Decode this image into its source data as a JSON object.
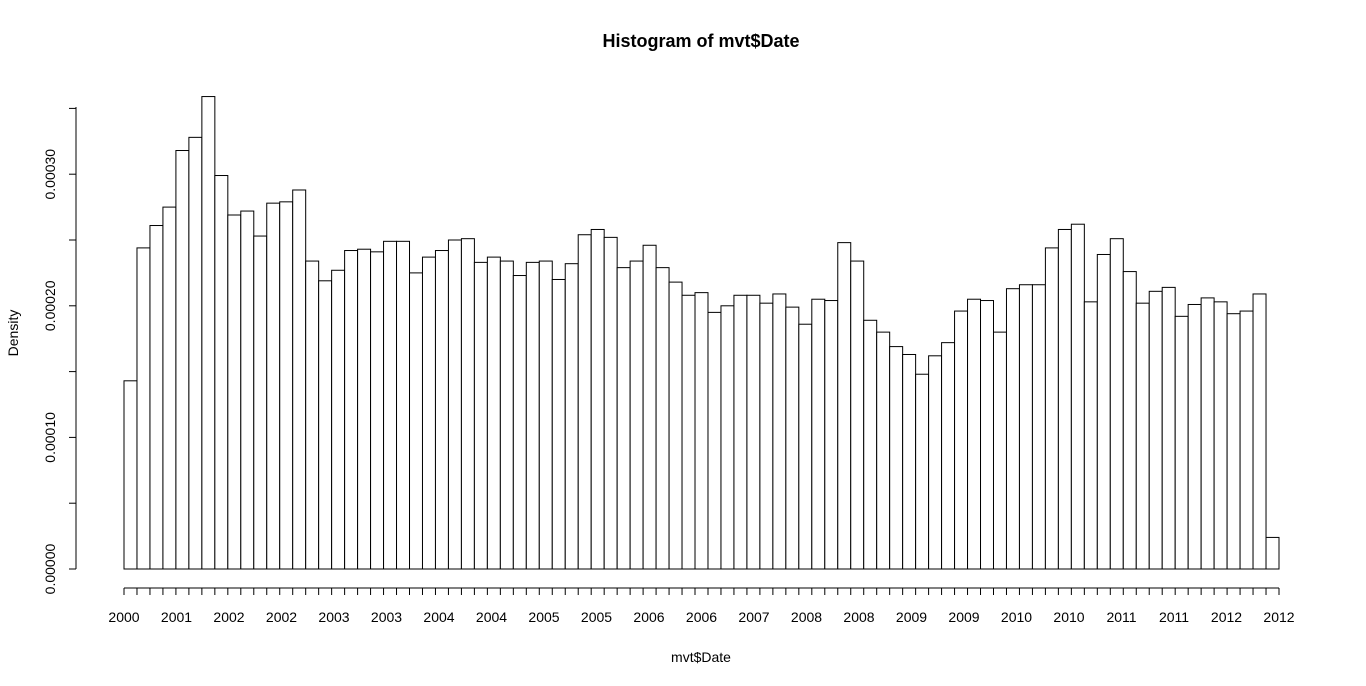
{
  "chart_data": {
    "type": "bar",
    "title": "Histogram of mvt$Date",
    "xlabel": "mvt$Date",
    "ylabel": "Density",
    "ylim": [
      0,
      0.00036
    ],
    "y_ticks": [
      0.0,
      0.0001,
      0.0002,
      0.0003
    ],
    "y_tick_labels": [
      "0.00000",
      "0.00010",
      "0.00020",
      "0.00030"
    ],
    "x_tick_labels": [
      "2000",
      "2001",
      "2002",
      "2002",
      "2003",
      "2003",
      "2004",
      "2004",
      "2005",
      "2005",
      "2006",
      "2006",
      "2007",
      "2008",
      "2008",
      "2009",
      "2009",
      "2010",
      "2010",
      "2011",
      "2011",
      "2012",
      "2012"
    ],
    "grid": false,
    "legend": "none",
    "values": [
      0.000143,
      0.000244,
      0.000261,
      0.000275,
      0.000318,
      0.000328,
      0.000359,
      0.000299,
      0.000269,
      0.000272,
      0.000253,
      0.000278,
      0.000279,
      0.000288,
      0.000234,
      0.000219,
      0.000227,
      0.000242,
      0.000243,
      0.000241,
      0.000249,
      0.000249,
      0.000225,
      0.000237,
      0.000242,
      0.00025,
      0.000251,
      0.000233,
      0.000237,
      0.000234,
      0.000223,
      0.000233,
      0.000234,
      0.00022,
      0.000232,
      0.000254,
      0.000258,
      0.000252,
      0.000229,
      0.000234,
      0.000246,
      0.000229,
      0.000218,
      0.000208,
      0.00021,
      0.000195,
      0.0002,
      0.000208,
      0.000208,
      0.000202,
      0.000209,
      0.000199,
      0.000186,
      0.000205,
      0.000204,
      0.000248,
      0.000234,
      0.000189,
      0.00018,
      0.000169,
      0.000163,
      0.000148,
      0.000162,
      0.000172,
      0.000196,
      0.000205,
      0.000204,
      0.00018,
      0.000213,
      0.000216,
      0.000216,
      0.000244,
      0.000258,
      0.000262,
      0.000203,
      0.000239,
      0.000251,
      0.000226,
      0.000202,
      0.000211,
      0.000214,
      0.000192,
      0.000201,
      0.000206,
      0.000203,
      0.000194,
      0.000196,
      0.000209,
      2.4e-05
    ]
  }
}
